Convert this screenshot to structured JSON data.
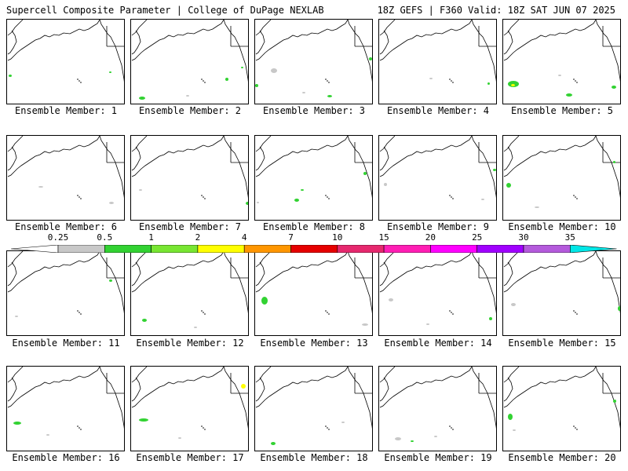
{
  "header": {
    "left": "Supercell Composite Parameter | College of DuPage NEXLAB",
    "right": "18Z GEFS | F360 Valid: 18Z SAT JUN 07 2025"
  },
  "panels": [
    {
      "label": "Ensemble Member: 1"
    },
    {
      "label": "Ensemble Member: 2"
    },
    {
      "label": "Ensemble Member: 3"
    },
    {
      "label": "Ensemble Member: 4"
    },
    {
      "label": "Ensemble Member: 5"
    },
    {
      "label": "Ensemble Member: 6"
    },
    {
      "label": "Ensemble Member: 7"
    },
    {
      "label": "Ensemble Member: 8"
    },
    {
      "label": "Ensemble Member: 9"
    },
    {
      "label": "Ensemble Member: 10"
    },
    {
      "label": "Ensemble Member: 11"
    },
    {
      "label": "Ensemble Member: 12"
    },
    {
      "label": "Ensemble Member: 13"
    },
    {
      "label": "Ensemble Member: 14"
    },
    {
      "label": "Ensemble Member: 15"
    },
    {
      "label": "Ensemble Member: 16"
    },
    {
      "label": "Ensemble Member: 17"
    },
    {
      "label": "Ensemble Member: 18"
    },
    {
      "label": "Ensemble Member: 19"
    },
    {
      "label": "Ensemble Member: 20"
    }
  ],
  "colorbar": {
    "labels": [
      "0.25",
      "0.5",
      "1",
      "2",
      "4",
      "7",
      "10",
      "15",
      "20",
      "25",
      "30",
      "35"
    ],
    "colors": [
      "#c8c8c8",
      "#32d232",
      "#78e632",
      "#ffff00",
      "#ff9600",
      "#e60000",
      "#e6286e",
      "#ff1eb4",
      "#ff00ff",
      "#a000ff",
      "#b45adc",
      "#00e6e6"
    ]
  }
}
